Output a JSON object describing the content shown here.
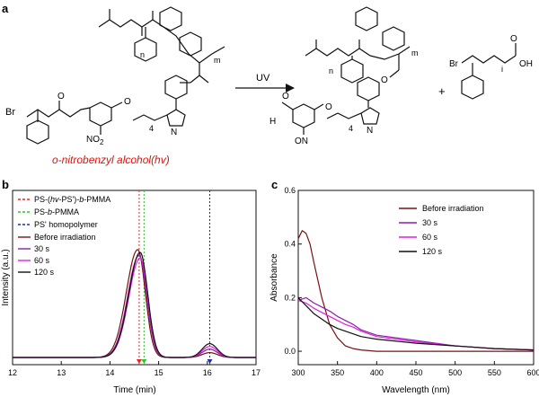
{
  "scheme": {
    "panel_label": "a",
    "reagent_caption": "o-nitrobenzyl alcohol(hv)",
    "arrow_label": "UV",
    "plus": "+",
    "atoms": {
      "br": "Br",
      "no2": "NO",
      "no2_sub": "2",
      "ono": "ON",
      "h": "H",
      "o": "O",
      "oh": "OH",
      "n": "N",
      "four": "4",
      "sub_n": "n",
      "sub_m": "m",
      "sub_i": "i"
    }
  },
  "chart_data": [
    {
      "panel_label": "b",
      "type": "line",
      "xlabel": "Time (min)",
      "ylabel": "Intensity (a.u.)",
      "xlim": [
        12,
        17
      ],
      "xticks": [
        12,
        13,
        14,
        15,
        16,
        17
      ],
      "legend_position": "top-left",
      "markers": [
        {
          "name": "PS-(hv-PS')-b-PMMA",
          "x": 14.6,
          "color": "#e8281e"
        },
        {
          "name": "PS-b-PMMA",
          "x": 14.7,
          "color": "#2ec42e"
        },
        {
          "name": "PS' homopolymer",
          "x": 16.05,
          "color": "#1c2aa8"
        }
      ],
      "legend_labels": {
        "m1_a": "PS-(",
        "m1_hv": "hv",
        "m1_b": "-PS')-",
        "m1_bb": "b",
        "m1_c": "-PMMA",
        "m2_a": "PS-",
        "m2_b": "b",
        "m2_c": "-PMMA",
        "m3": "PS' homopolymer"
      },
      "series": [
        {
          "name": "Before irradiation",
          "color": "#7b1012",
          "peak1": 0.78,
          "peak1_x": 14.57,
          "peak2": 0.035
        },
        {
          "name": "30 s",
          "color": "#8b1fa8",
          "peak1": 0.74,
          "peak1_x": 14.6,
          "peak2": 0.06
        },
        {
          "name": "60 s",
          "color": "#e020e0",
          "peak1": 0.72,
          "peak1_x": 14.62,
          "peak2": 0.08
        },
        {
          "name": "120 s",
          "color": "#111111",
          "peak1": 0.76,
          "peak1_x": 14.62,
          "peak2": 0.1
        }
      ]
    },
    {
      "panel_label": "c",
      "type": "line",
      "xlabel": "Wavelength (nm)",
      "ylabel": "Absorbance",
      "xlim": [
        300,
        600
      ],
      "ylim": [
        -0.05,
        0.6
      ],
      "xticks": [
        300,
        350,
        400,
        450,
        500,
        550,
        600
      ],
      "yticks": [
        0.0,
        0.2,
        0.4,
        0.6
      ],
      "ytick_labels": [
        "0.0",
        "0.2",
        "0.4",
        "0.6"
      ],
      "legend_position": "top-right",
      "series": [
        {
          "name": "Before irradiation",
          "color": "#7b1012",
          "x": [
            300,
            305,
            310,
            315,
            320,
            330,
            340,
            350,
            360,
            370,
            380,
            400,
            450,
            500,
            550,
            600
          ],
          "y": [
            0.42,
            0.45,
            0.44,
            0.4,
            0.33,
            0.2,
            0.1,
            0.05,
            0.02,
            0.01,
            0.005,
            0.0,
            0.0,
            0.0,
            0.0,
            0.0
          ]
        },
        {
          "name": "30 s",
          "color": "#8b1fa8",
          "x": [
            300,
            310,
            320,
            330,
            340,
            350,
            360,
            370,
            380,
            390,
            400,
            450,
            500,
            550,
            600
          ],
          "y": [
            0.19,
            0.2,
            0.18,
            0.165,
            0.15,
            0.13,
            0.115,
            0.1,
            0.08,
            0.07,
            0.06,
            0.04,
            0.02,
            0.01,
            0.005
          ]
        },
        {
          "name": "60 s",
          "color": "#e020e0",
          "x": [
            300,
            310,
            320,
            330,
            340,
            350,
            360,
            370,
            380,
            390,
            400,
            450,
            500,
            550,
            600
          ],
          "y": [
            0.19,
            0.18,
            0.16,
            0.145,
            0.13,
            0.115,
            0.1,
            0.09,
            0.075,
            0.065,
            0.055,
            0.035,
            0.02,
            0.01,
            0.005
          ]
        },
        {
          "name": "120 s",
          "color": "#111111",
          "x": [
            300,
            310,
            320,
            330,
            340,
            350,
            360,
            370,
            380,
            390,
            400,
            450,
            500,
            550,
            600
          ],
          "y": [
            0.2,
            0.17,
            0.14,
            0.12,
            0.1,
            0.085,
            0.075,
            0.065,
            0.055,
            0.05,
            0.045,
            0.03,
            0.02,
            0.01,
            0.005
          ]
        }
      ]
    }
  ]
}
